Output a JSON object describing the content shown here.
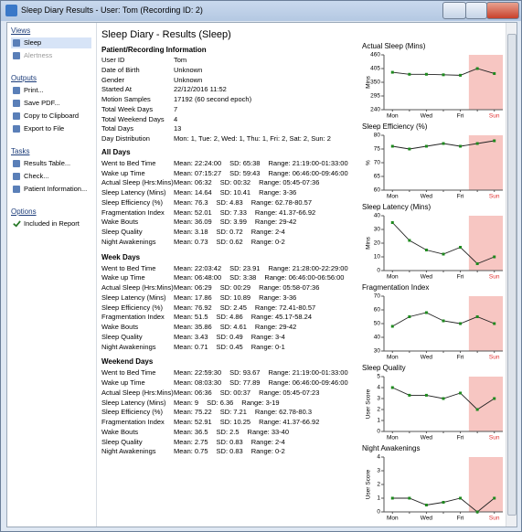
{
  "window": {
    "title": "Sleep Diary Results - User: Tom (Recording ID: 2)"
  },
  "sidebar": [
    {
      "heading": "Views",
      "items": [
        "Sleep",
        "Alertness"
      ]
    },
    {
      "heading": "Outputs",
      "items": [
        "Print...",
        "Save PDF...",
        "Copy to Clipboard",
        "Export to File"
      ]
    },
    {
      "heading": "Tasks",
      "items": [
        "Results Table...",
        "Check...",
        "Patient Information..."
      ]
    },
    {
      "heading": "Options",
      "items": [
        "Included in Report"
      ]
    }
  ],
  "report": {
    "title": "Sleep Diary - Results (Sleep)",
    "info": {
      "heading": "Patient/Recording Information",
      "rows": [
        [
          "User ID",
          "Tom"
        ],
        [
          "Date of Birth",
          "Unknown"
        ],
        [
          "Gender",
          "Unknown"
        ],
        [
          "Started At",
          "22/12/2016 11:52"
        ],
        [
          "Motion Samples",
          "17192 (60 second epoch)"
        ],
        [
          "Total Week Days",
          "7"
        ],
        [
          "Total Weekend Days",
          "4"
        ],
        [
          "Total Days",
          "13"
        ],
        [
          "Day Distribution",
          "Mon: 1, Tue: 2, Wed: 1, Thu: 1, Fri: 2, Sat: 2, Sun: 2"
        ]
      ]
    },
    "sections": [
      {
        "heading": "All Days",
        "rows": [
          [
            "Went to Bed Time",
            "Mean: 22:24:00",
            "SD: 65:38",
            "Range: 21:19:00-01:33:00"
          ],
          [
            "Wake up Time",
            "Mean: 07:15:27",
            "SD: 59:43",
            "Range: 06:46:00-09:46:00"
          ],
          [
            "Actual Sleep (Hrs:Mins)",
            "Mean: 06:32",
            "SD: 00:32",
            "Range: 05:45-07:36"
          ],
          [
            "Sleep Latency (Mins)",
            "Mean: 14.64",
            "SD: 10.41",
            "Range: 3-36"
          ],
          [
            "Sleep Efficiency (%)",
            "Mean: 76.3",
            "SD: 4.83",
            "Range: 62.78-80.57"
          ],
          [
            "Fragmentation Index",
            "Mean: 52.01",
            "SD: 7.33",
            "Range: 41.37-66.92"
          ],
          [
            "Wake Bouts",
            "Mean: 36.09",
            "SD: 3.99",
            "Range: 29-42"
          ],
          [
            "Sleep Quality",
            "Mean: 3.18",
            "SD: 0.72",
            "Range: 2-4"
          ],
          [
            "Night Awakenings",
            "Mean: 0.73",
            "SD: 0.62",
            "Range: 0-2"
          ]
        ]
      },
      {
        "heading": "Week Days",
        "rows": [
          [
            "Went to Bed Time",
            "Mean: 22:03:42",
            "SD: 23.91",
            "Range: 21:28:00-22:29:00"
          ],
          [
            "Wake up Time",
            "Mean: 06:48:00",
            "SD: 3:38",
            "Range: 06:46:00-06:56:00"
          ],
          [
            "Actual Sleep (Hrs:Mins)",
            "Mean: 06:29",
            "SD: 00:29",
            "Range: 05:58-07:36"
          ],
          [
            "Sleep Latency (Mins)",
            "Mean: 17.86",
            "SD: 10.89",
            "Range: 3-36"
          ],
          [
            "Sleep Efficiency (%)",
            "Mean: 76.92",
            "SD: 2.45",
            "Range: 72.41-80.57"
          ],
          [
            "Fragmentation Index",
            "Mean: 51.5",
            "SD: 4.86",
            "Range: 45.17-58.24"
          ],
          [
            "Wake Bouts",
            "Mean: 35.86",
            "SD: 4.61",
            "Range: 29-42"
          ],
          [
            "Sleep Quality",
            "Mean: 3.43",
            "SD: 0.49",
            "Range: 3-4"
          ],
          [
            "Night Awakenings",
            "Mean: 0.71",
            "SD: 0.45",
            "Range: 0-1"
          ]
        ]
      },
      {
        "heading": "Weekend Days",
        "rows": [
          [
            "Went to Bed Time",
            "Mean: 22:59:30",
            "SD: 93.67",
            "Range: 21:19:00-01:33:00"
          ],
          [
            "Wake up Time",
            "Mean: 08:03:30",
            "SD: 77.89",
            "Range: 06:46:00-09:46:00"
          ],
          [
            "Actual Sleep (Hrs:Mins)",
            "Mean: 06:36",
            "SD: 00:37",
            "Range: 05:45-07:23"
          ],
          [
            "Sleep Latency (Mins)",
            "Mean: 9",
            "SD: 6.36",
            "Range: 3-19"
          ],
          [
            "Sleep Efficiency (%)",
            "Mean: 75.22",
            "SD: 7.21",
            "Range: 62.78-80.3"
          ],
          [
            "Fragmentation Index",
            "Mean: 52.91",
            "SD: 10.25",
            "Range: 41.37-66.92"
          ],
          [
            "Wake Bouts",
            "Mean: 36.5",
            "SD: 2.5",
            "Range: 33-40"
          ],
          [
            "Sleep Quality",
            "Mean: 2.75",
            "SD: 0.83",
            "Range: 2-4"
          ],
          [
            "Night Awakenings",
            "Mean: 0.75",
            "SD: 0.83",
            "Range: 0-2"
          ]
        ]
      }
    ]
  },
  "chart_data": [
    {
      "type": "line",
      "title": "Actual Sleep (Mins)",
      "y_label": "Mins",
      "categories": [
        "Mon",
        null,
        "Wed",
        null,
        "Fri",
        null,
        "Sun"
      ],
      "values": [
        390,
        382,
        382,
        380,
        378,
        405,
        385
      ],
      "color": "#222222",
      "marker_color": "#1e8a1e",
      "ylim": [
        240,
        460
      ],
      "yticks": [
        240,
        295,
        350,
        405,
        460
      ]
    },
    {
      "type": "line",
      "title": "Sleep Efficiency (%)",
      "y_label": "%",
      "categories": [
        "Mon",
        null,
        "Wed",
        null,
        "Fri",
        null,
        "Sun"
      ],
      "values": [
        76,
        75,
        76,
        77,
        76,
        77,
        78
      ],
      "color": "#222222",
      "marker_color": "#1e8a1e",
      "ylim": [
        60,
        80
      ],
      "yticks": [
        60,
        65,
        70,
        75,
        80
      ]
    },
    {
      "type": "line",
      "title": "Sleep Latency (Mins)",
      "y_label": "Mins",
      "categories": [
        "Mon",
        null,
        "Wed",
        null,
        "Fri",
        null,
        "Sun"
      ],
      "values": [
        35,
        22,
        15,
        12,
        17,
        5,
        10
      ],
      "color": "#222222",
      "marker_color": "#1e8a1e",
      "ylim": [
        0,
        40
      ],
      "yticks": [
        0,
        10,
        20,
        30,
        40
      ]
    },
    {
      "type": "line",
      "title": "Fragmentation Index",
      "categories": [
        "Mon",
        null,
        "Wed",
        null,
        "Fri",
        null,
        "Sun"
      ],
      "values": [
        48,
        55,
        58,
        52,
        50,
        55,
        50
      ],
      "color": "#222222",
      "marker_color": "#1e8a1e",
      "ylim": [
        30,
        70
      ],
      "yticks": [
        30,
        40,
        50,
        60,
        70
      ]
    },
    {
      "type": "line",
      "title": "Sleep Quality",
      "y_label": "User Score",
      "categories": [
        "Mon",
        null,
        "Wed",
        null,
        "Fri",
        null,
        "Sun"
      ],
      "values": [
        4,
        3.3,
        3.3,
        3,
        3.5,
        2,
        3
      ],
      "color": "#222222",
      "marker_color": "#1e8a1e",
      "ylim": [
        0,
        5
      ],
      "yticks": [
        0,
        1,
        2,
        3,
        4,
        5
      ]
    },
    {
      "type": "line",
      "title": "Night Awakenings",
      "y_label": "User Score",
      "categories": [
        "Mon",
        null,
        "Wed",
        null,
        "Fri",
        null,
        "Sun"
      ],
      "values": [
        1,
        1,
        0.5,
        0.7,
        1,
        0,
        1
      ],
      "color": "#222222",
      "marker_color": "#1e8a1e",
      "ylim": [
        0,
        4
      ],
      "yticks": [
        0,
        1,
        2,
        3,
        4
      ]
    }
  ]
}
